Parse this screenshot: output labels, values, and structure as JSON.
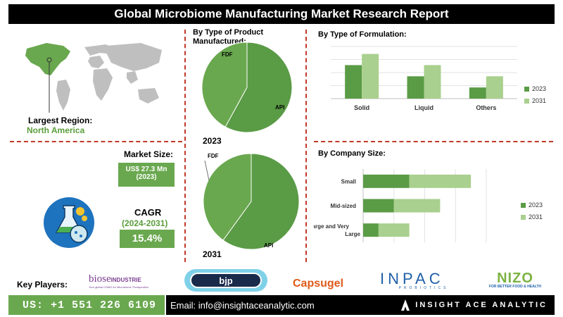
{
  "header": {
    "title": "Global Microbiome Manufacturing Market Research Report"
  },
  "region": {
    "label": "Largest Region:",
    "value": "North America"
  },
  "market_size": {
    "label": "Market Size:",
    "value": "US$ 27.3 Mn",
    "year": "(2023)"
  },
  "cagr": {
    "label": "CAGR",
    "period": "(2024-2031)",
    "value": "15.4%"
  },
  "key_players": {
    "label": "Key Players:",
    "biose": {
      "name": "biose",
      "suffix": "INDUSTRIE",
      "tagline": "Your global CDMO for Microbiome Therapeutics"
    },
    "bjp": "bjp",
    "capsugel": "Capsugel",
    "inpac": {
      "name": "INPAC",
      "sub": "PROBIOTICS"
    },
    "nizo": {
      "name": "NIZO",
      "sub": "FOR BETTER FOOD & HEALTH"
    }
  },
  "footer": {
    "phone": "US: +1 551 226 6109",
    "email": "Email: info@insightaceanalytic.com",
    "brand": "INSIGHT ACE ANALYTIC"
  },
  "colors": {
    "dark_green": "#5a9b46",
    "light_green": "#a9d08e",
    "accent_red": "#c0392b"
  },
  "chart_data": [
    {
      "type": "pie",
      "title": "By Type of Product Manufactured:",
      "year_label": "2023",
      "labels": [
        "API",
        "FDF"
      ],
      "values": [
        58,
        42
      ]
    },
    {
      "type": "pie",
      "title": "",
      "year_label": "2031",
      "labels": [
        "API",
        "FDF"
      ],
      "values": [
        60,
        40
      ]
    },
    {
      "type": "bar",
      "title": "By  Type of Formulation:",
      "categories": [
        "Solid",
        "Liquid",
        "Others"
      ],
      "series": [
        {
          "name": "2023",
          "values": [
            45,
            30,
            15
          ]
        },
        {
          "name": "2031",
          "values": [
            60,
            45,
            30
          ]
        }
      ],
      "ylim": [
        0,
        70
      ]
    },
    {
      "type": "bar",
      "orientation": "horizontal",
      "stacked": true,
      "title": "By Company Size:",
      "categories": [
        "Small",
        "Mid-sized",
        "Large and Very Large"
      ],
      "category_lines": [
        [
          "Small"
        ],
        [
          "Mid-sized"
        ],
        [
          "Large and Very",
          "Large"
        ]
      ],
      "series": [
        {
          "name": "2023",
          "values": [
            30,
            20,
            10
          ]
        },
        {
          "name": "2031",
          "values": [
            40,
            30,
            20
          ]
        }
      ],
      "xlim": [
        0,
        80
      ]
    }
  ]
}
